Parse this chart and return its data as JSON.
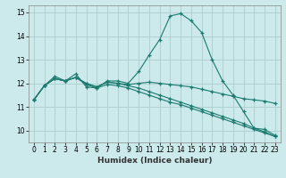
{
  "xlabel": "Humidex (Indice chaleur)",
  "ylabel": "",
  "background_color": "#cce9eb",
  "grid_color": "#b0d0d2",
  "line_color": "#1a7a6e",
  "xlim": [
    -0.5,
    23.5
  ],
  "ylim": [
    9.5,
    15.3
  ],
  "yticks": [
    10,
    11,
    12,
    13,
    14,
    15
  ],
  "xticks": [
    0,
    1,
    2,
    3,
    4,
    5,
    6,
    7,
    8,
    9,
    10,
    11,
    12,
    13,
    14,
    15,
    16,
    17,
    18,
    19,
    20,
    21,
    22,
    23
  ],
  "series": [
    [
      11.3,
      11.9,
      12.3,
      12.1,
      12.4,
      11.85,
      11.8,
      12.1,
      12.1,
      12.0,
      12.5,
      13.2,
      13.85,
      14.85,
      14.95,
      14.65,
      14.15,
      13.0,
      12.1,
      11.5,
      10.8,
      10.1,
      10.05,
      9.8
    ],
    [
      11.3,
      11.9,
      12.2,
      12.1,
      12.25,
      12.0,
      11.85,
      12.05,
      12.0,
      11.95,
      12.0,
      12.05,
      12.0,
      11.95,
      11.9,
      11.85,
      11.75,
      11.65,
      11.55,
      11.45,
      11.35,
      11.3,
      11.25,
      11.15
    ],
    [
      11.3,
      11.9,
      12.2,
      12.1,
      12.25,
      11.95,
      11.8,
      11.95,
      11.9,
      11.8,
      11.65,
      11.5,
      11.35,
      11.2,
      11.1,
      10.95,
      10.8,
      10.65,
      10.5,
      10.35,
      10.2,
      10.05,
      9.9,
      9.75
    ],
    [
      11.3,
      11.9,
      12.2,
      12.1,
      12.25,
      12.0,
      11.85,
      12.05,
      12.0,
      11.9,
      11.8,
      11.65,
      11.5,
      11.35,
      11.2,
      11.05,
      10.9,
      10.75,
      10.6,
      10.45,
      10.3,
      10.1,
      9.95,
      9.75
    ]
  ]
}
